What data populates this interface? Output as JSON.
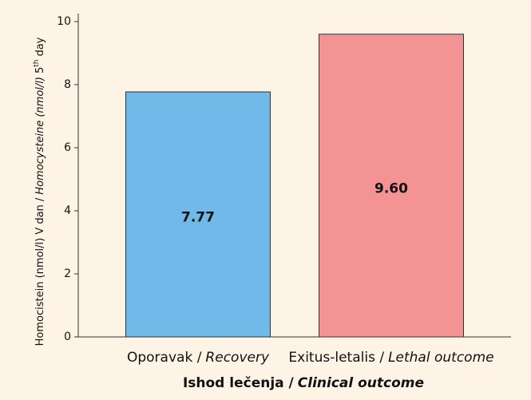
{
  "chart_data": {
    "type": "bar",
    "categories": [
      [
        "Oporavak /",
        "Recovery"
      ],
      [
        "Exitus-letalis /",
        "Lethal outcome"
      ]
    ],
    "values": [
      7.77,
      9.6
    ],
    "value_labels": [
      "7.77",
      "9.60"
    ],
    "colors": [
      "#70b9e8",
      "#f49394"
    ],
    "x_label": [
      "Ishod lečenja /",
      "Clinical outcome"
    ],
    "y_label": [
      "Homocistein (nmol/l) V dan /",
      "Homocysteine (nmol/l)",
      "5",
      "th",
      "day"
    ],
    "ylim": [
      0,
      10
    ],
    "yticks": [
      0,
      2,
      4,
      6,
      8,
      10
    ]
  }
}
